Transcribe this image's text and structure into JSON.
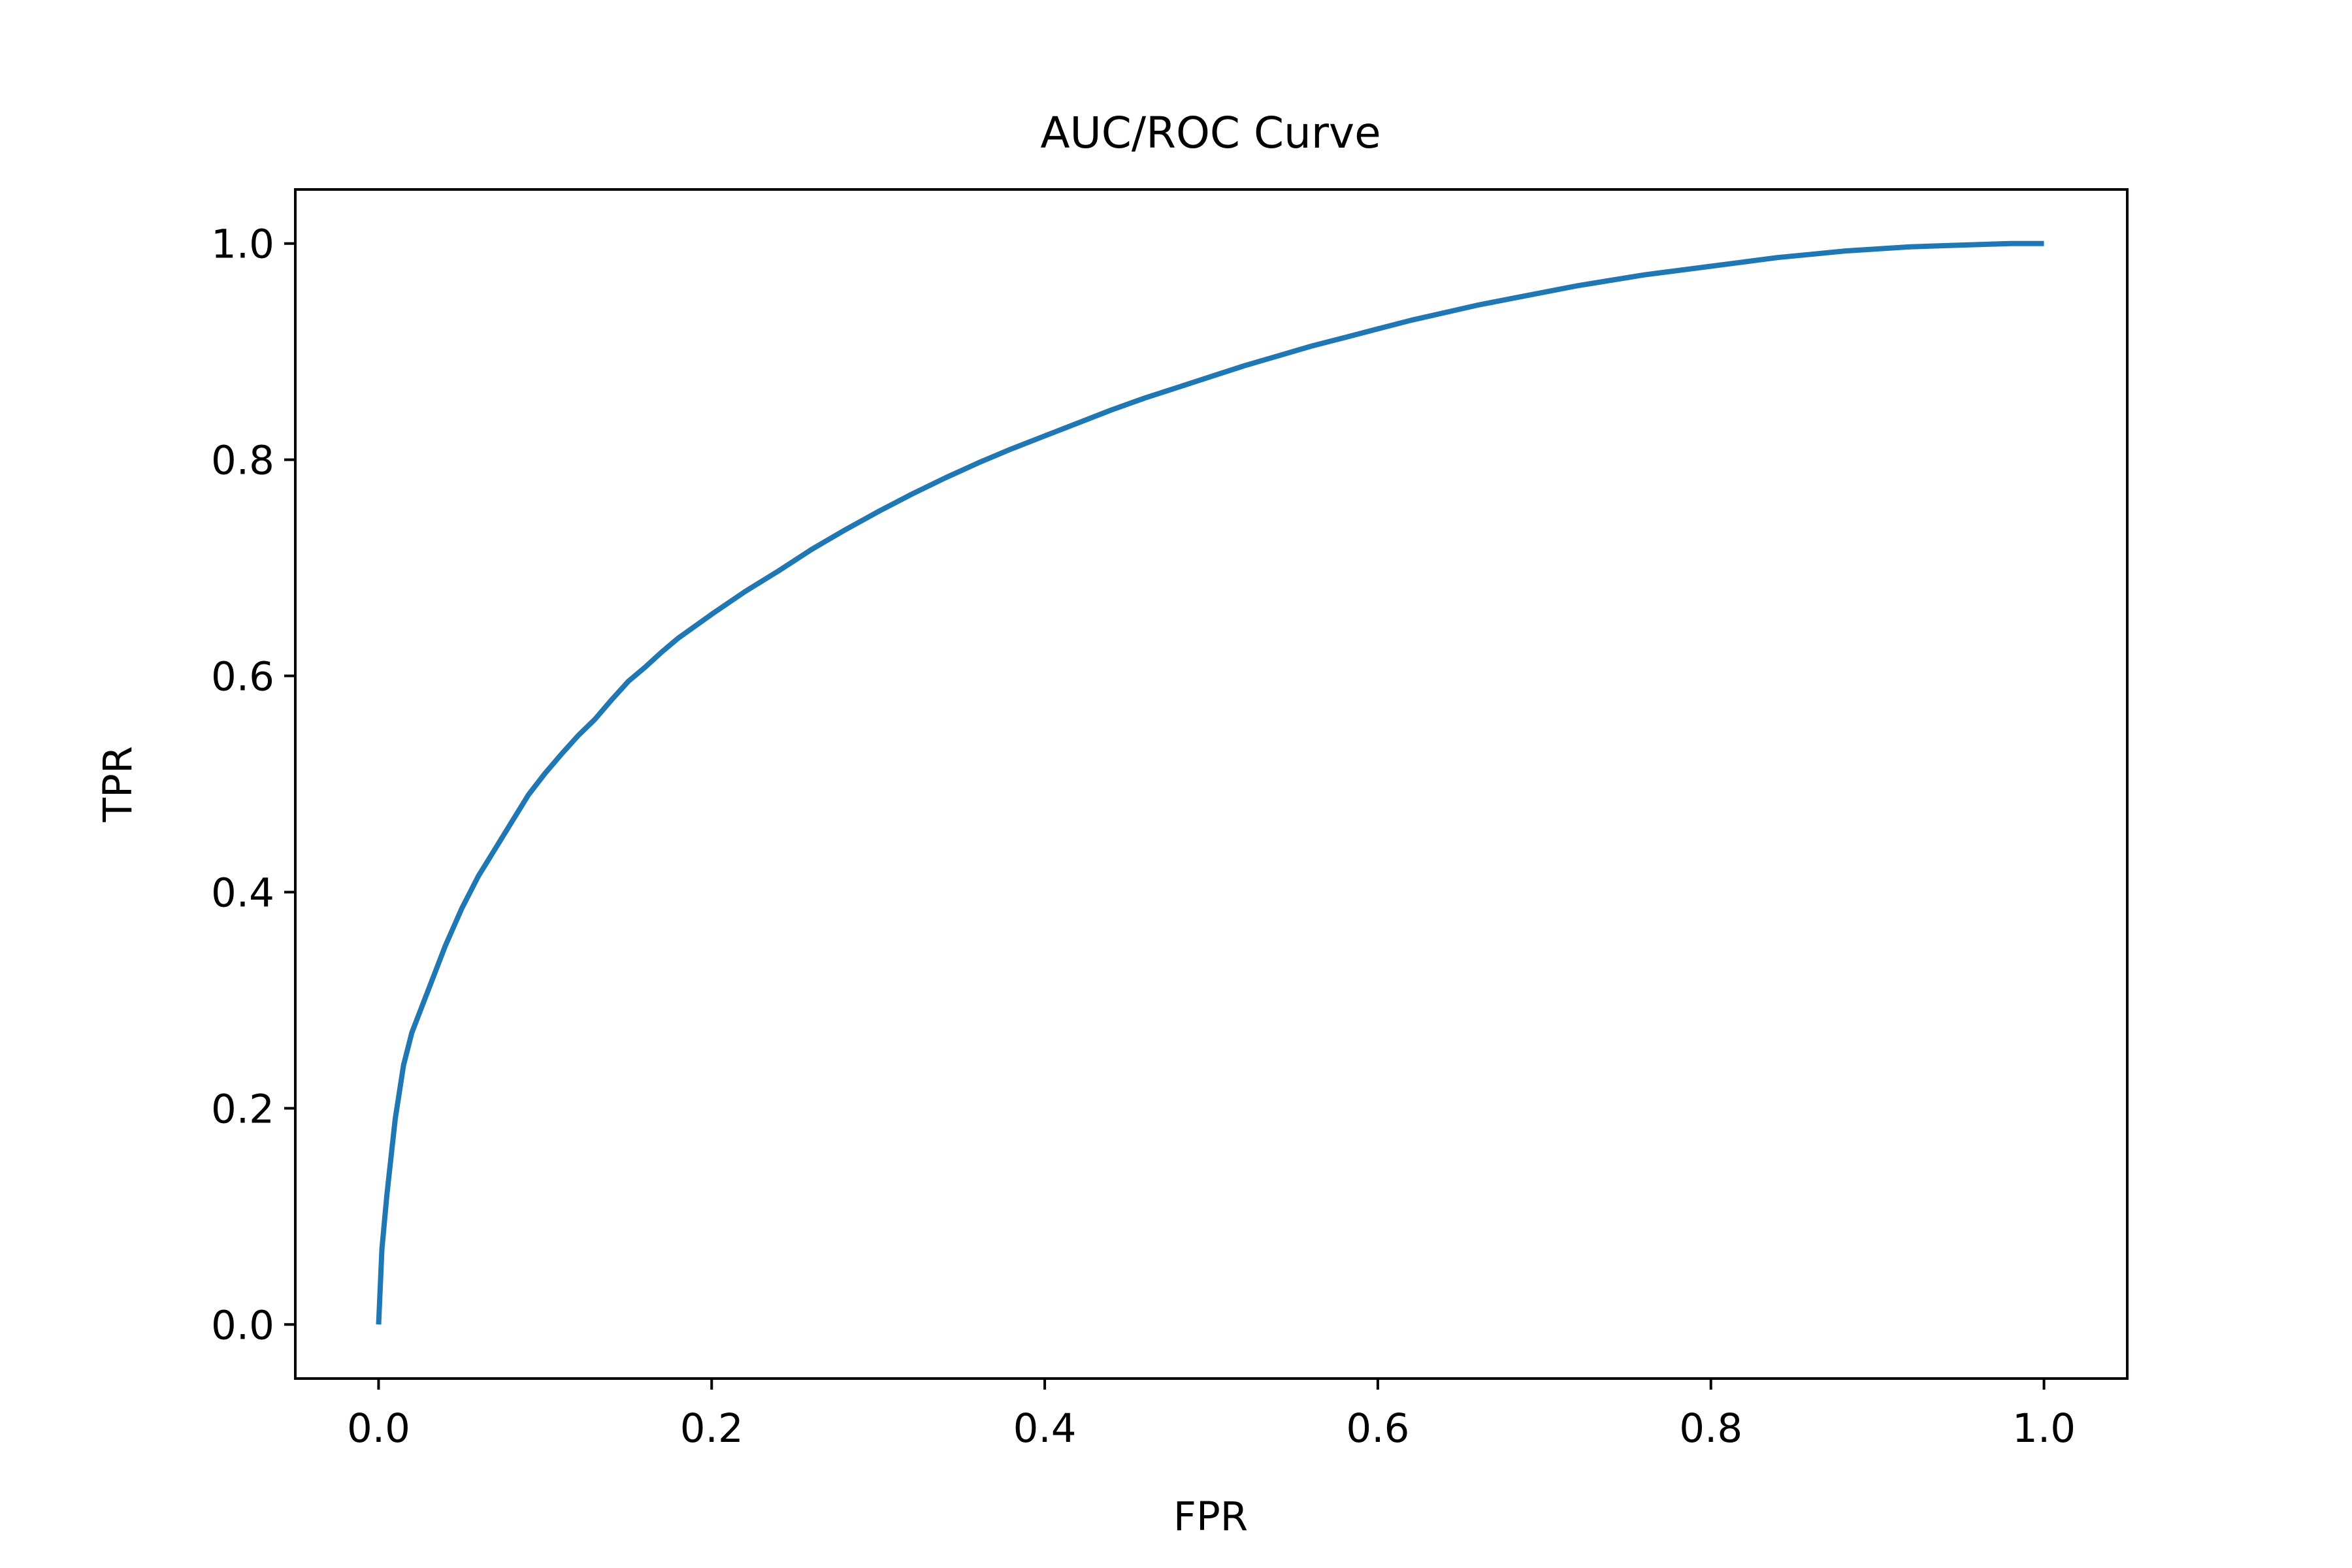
{
  "chart_data": {
    "type": "line",
    "title": "AUC/ROC Curve",
    "xlabel": "FPR",
    "ylabel": "TPR",
    "xlim": [
      -0.05,
      1.05
    ],
    "ylim": [
      -0.05,
      1.05
    ],
    "xticks": [
      0.0,
      0.2,
      0.4,
      0.6,
      0.8,
      1.0
    ],
    "xtick_labels": [
      "0.0",
      "0.2",
      "0.4",
      "0.6",
      "0.8",
      "1.0"
    ],
    "yticks": [
      0.0,
      0.2,
      0.4,
      0.6,
      0.8,
      1.0
    ],
    "ytick_labels": [
      "0.0",
      "0.2",
      "0.4",
      "0.6",
      "0.8",
      "1.0"
    ],
    "grid": false,
    "legend": "none",
    "series": [
      {
        "color": "#1f77b4",
        "x": [
          0.0,
          0.002,
          0.005,
          0.01,
          0.015,
          0.02,
          0.03,
          0.04,
          0.05,
          0.06,
          0.07,
          0.08,
          0.09,
          0.1,
          0.11,
          0.12,
          0.13,
          0.14,
          0.15,
          0.16,
          0.17,
          0.18,
          0.2,
          0.22,
          0.24,
          0.26,
          0.28,
          0.3,
          0.32,
          0.34,
          0.36,
          0.38,
          0.4,
          0.42,
          0.44,
          0.46,
          0.48,
          0.5,
          0.52,
          0.54,
          0.56,
          0.58,
          0.6,
          0.62,
          0.64,
          0.66,
          0.68,
          0.7,
          0.72,
          0.74,
          0.76,
          0.78,
          0.8,
          0.82,
          0.84,
          0.86,
          0.88,
          0.9,
          0.92,
          0.94,
          0.96,
          0.98,
          1.0
        ],
        "y": [
          0.0,
          0.07,
          0.12,
          0.19,
          0.24,
          0.27,
          0.31,
          0.35,
          0.385,
          0.415,
          0.44,
          0.465,
          0.49,
          0.51,
          0.528,
          0.545,
          0.56,
          0.578,
          0.595,
          0.608,
          0.622,
          0.635,
          0.657,
          0.678,
          0.697,
          0.717,
          0.735,
          0.752,
          0.768,
          0.783,
          0.797,
          0.81,
          0.822,
          0.834,
          0.846,
          0.857,
          0.867,
          0.877,
          0.887,
          0.896,
          0.905,
          0.913,
          0.921,
          0.929,
          0.936,
          0.943,
          0.949,
          0.955,
          0.961,
          0.966,
          0.971,
          0.975,
          0.979,
          0.983,
          0.987,
          0.99,
          0.993,
          0.995,
          0.997,
          0.998,
          0.999,
          1.0,
          1.0
        ]
      }
    ]
  }
}
